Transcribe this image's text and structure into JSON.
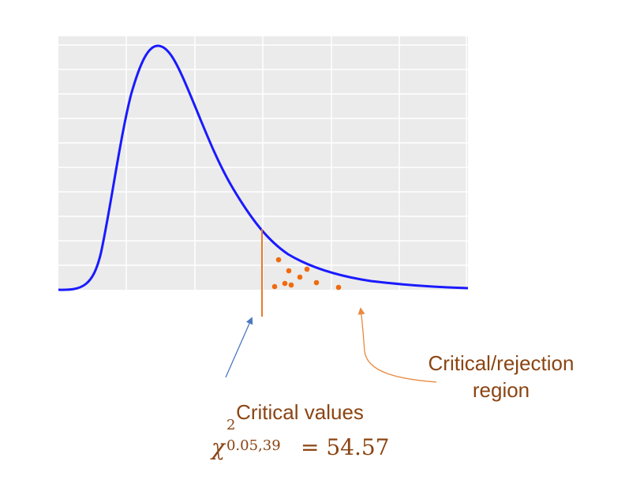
{
  "labels": {
    "region_line1": "Critical/rejection",
    "region_line2": "region",
    "critical_values": "Critical values",
    "formula_symbol": "χ",
    "formula_superscript": "2",
    "formula_subscript": "0.05,39",
    "formula_equals": "= 54.57"
  },
  "colors": {
    "plot_background": "#ebebeb",
    "grid": "#ffffff",
    "curve": "#1a1aff",
    "critical_line": "#e87a2a",
    "points": "#f06a10",
    "arrow_blue": "#4a78c0",
    "arrow_orange": "#e88a40",
    "label_text": "#8B4513"
  }
}
